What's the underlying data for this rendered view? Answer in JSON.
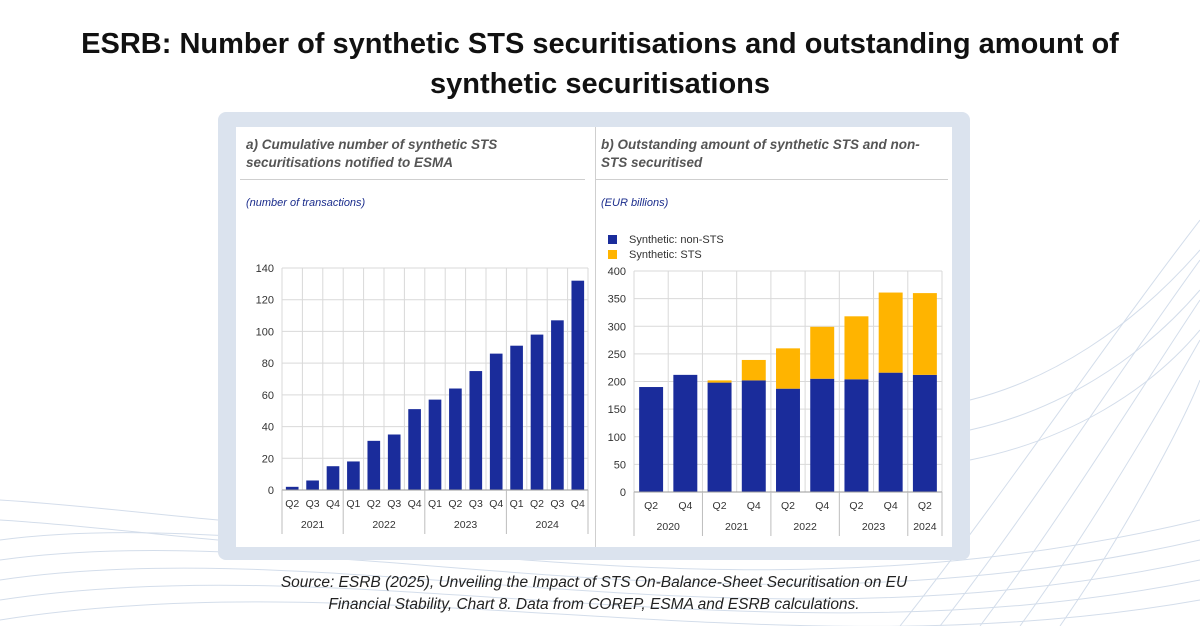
{
  "title_line1": "ESRB: Number of synthetic STS securitisations and outstanding amount of",
  "title_line2": "synthetic securitisations",
  "source_line1": "Source: ESRB (2025), Unveiling the Impact of STS On-Balance-Sheet Securitisation on EU",
  "source_line2": "Financial Stability, Chart 8. Data from COREP, ESMA and ESRB calculations.",
  "colors": {
    "bar_blue": "#1a2c9b",
    "bar_yellow": "#ffb400",
    "card": "#dbe3ee"
  },
  "chart_data": [
    {
      "type": "bar",
      "title_line1": "a) Cumulative number of synthetic STS",
      "title_line2": "securitisations notified to ESMA",
      "unit_label": "(number of transactions)",
      "categories": [
        "Q2",
        "Q3",
        "Q4",
        "Q1",
        "Q2",
        "Q3",
        "Q4",
        "Q1",
        "Q2",
        "Q3",
        "Q4",
        "Q1",
        "Q2",
        "Q3",
        "Q4"
      ],
      "year_groups": [
        {
          "label": "2021",
          "count": 3
        },
        {
          "label": "2022",
          "count": 4
        },
        {
          "label": "2023",
          "count": 4
        },
        {
          "label": "2024",
          "count": 4
        }
      ],
      "values": [
        2,
        6,
        15,
        18,
        31,
        35,
        51,
        57,
        64,
        75,
        86,
        91,
        98,
        107,
        132
      ],
      "ylim": [
        0,
        140
      ],
      "yticks": [
        "0",
        "20",
        "40",
        "60",
        "80",
        "100",
        "120",
        "140"
      ]
    },
    {
      "type": "bar",
      "stacked": true,
      "title_line1": "b) Outstanding amount of synthetic STS and non-",
      "title_line2": "STS securitised",
      "unit_label": "(EUR billions)",
      "categories": [
        "Q2",
        "Q4",
        "Q2",
        "Q4",
        "Q2",
        "Q4",
        "Q2",
        "Q4",
        "Q2"
      ],
      "year_groups": [
        {
          "label": "2020",
          "count": 2
        },
        {
          "label": "2021",
          "count": 2
        },
        {
          "label": "2022",
          "count": 2
        },
        {
          "label": "2023",
          "count": 2
        },
        {
          "label": "2024",
          "count": 1
        }
      ],
      "series": [
        {
          "name": "Synthetic: non-STS",
          "values": [
            190,
            212,
            198,
            202,
            187,
            205,
            204,
            216,
            212
          ]
        },
        {
          "name": "Synthetic: STS",
          "values": [
            0,
            0,
            4,
            37,
            73,
            94,
            114,
            145,
            148
          ]
        }
      ],
      "ylim": [
        0,
        400
      ],
      "yticks": [
        "0",
        "50",
        "100",
        "150",
        "200",
        "250",
        "300",
        "350",
        "400"
      ],
      "legend": [
        "Synthetic: non-STS",
        "Synthetic: STS"
      ]
    }
  ]
}
